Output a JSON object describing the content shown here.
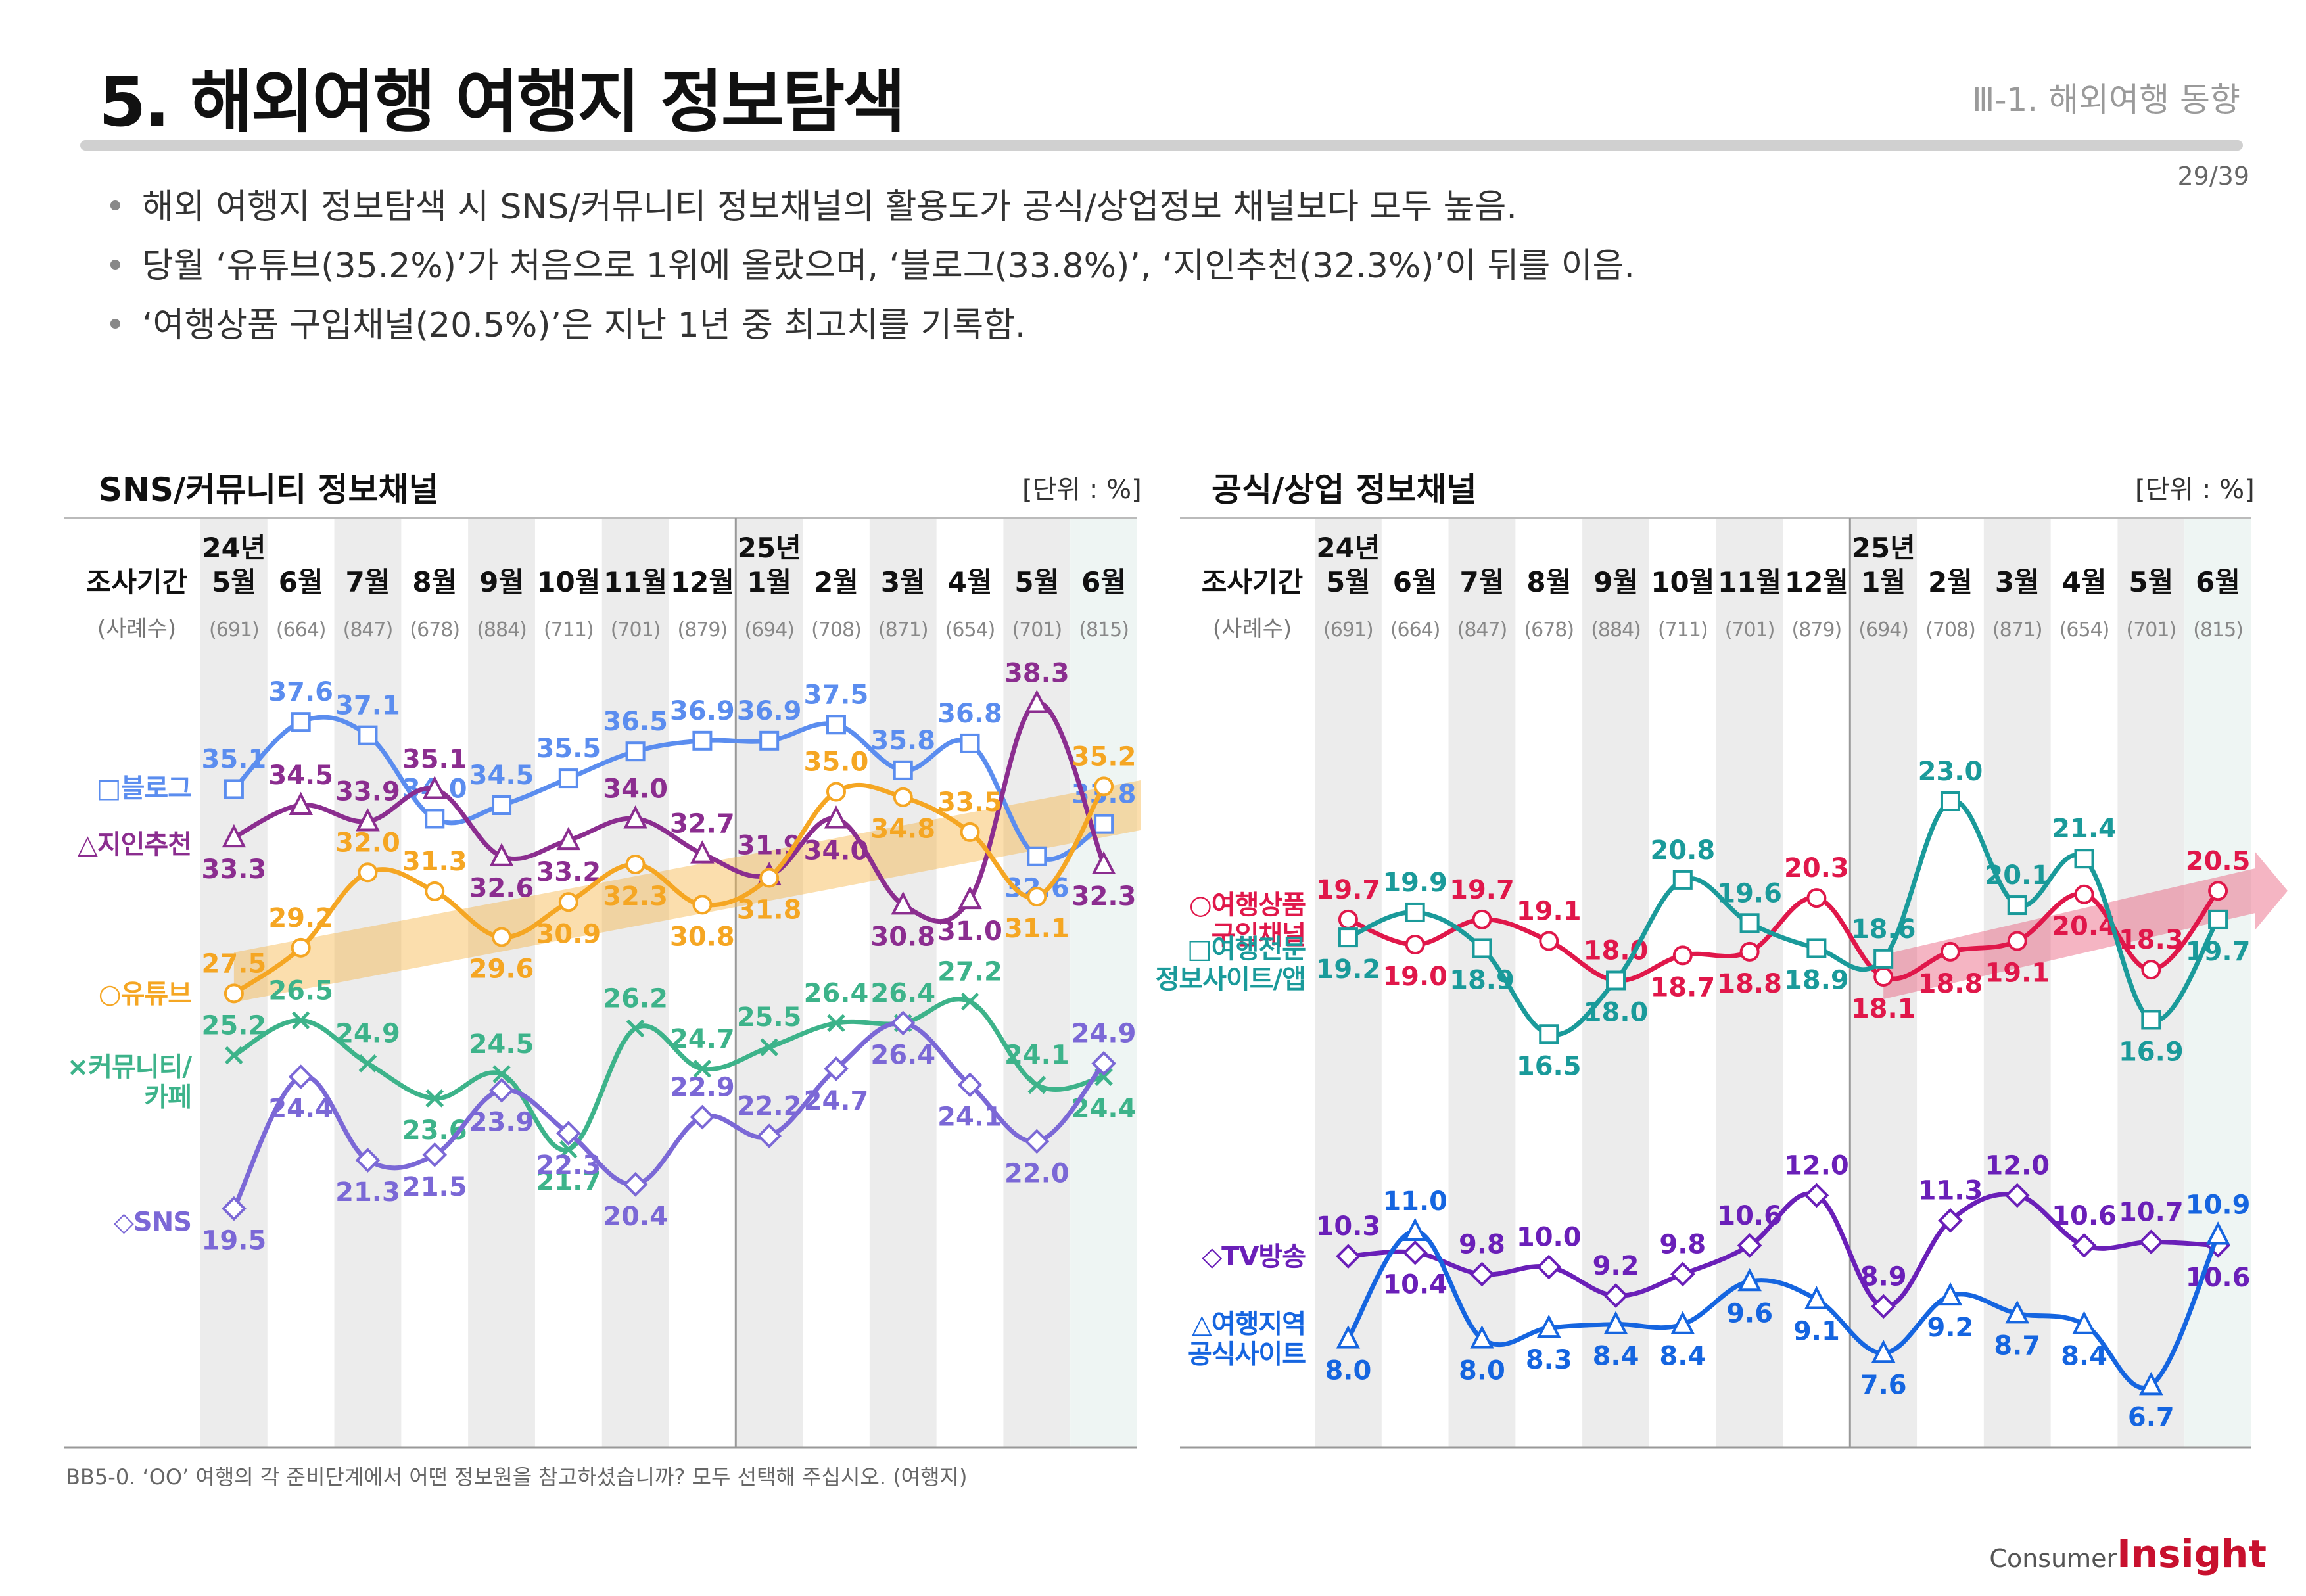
{
  "header": {
    "title": "5. 해외여행 여행지 정보탐색",
    "section": "Ⅲ-1. 해외여행 동향",
    "page": "29/39"
  },
  "bullets": [
    "해외 여행지 정보탐색 시 SNS/커뮤니티 정보채널의 활용도가 공식/상업정보 채널보다 모두 높음.",
    "당월 ‘유튜브(35.2%)’가 처음으로 1위에 올랐으며, ‘블로그(33.8%)’, ‘지인추천(32.3%)’이 뒤를 이음.",
    "‘여행상품 구입채널(20.5%)’은 지난 1년 중 최고치를 기록함."
  ],
  "footnote": "BB5-0. ‘OO’ 여행의 각 준비단계에서 어떤 정보원을 참고하셨습니까? 모두 선택해 주십시오. (여행지)",
  "logo": {
    "consumer": "Consumer",
    "insight": "Insight"
  },
  "chart_data": [
    {
      "type": "line",
      "title": "SNS/커뮤니티 정보채널",
      "unit": "[단위 : %]",
      "row_label": "조사기간",
      "n_label": "(사례수)",
      "year_labels": [
        "24년",
        "25년"
      ],
      "categories": [
        "5월",
        "6월",
        "7월",
        "8월",
        "9월",
        "10월",
        "11월",
        "12월",
        "1월",
        "2월",
        "3월",
        "4월",
        "5월",
        "6월"
      ],
      "sample_sizes": [
        "(691)",
        "(664)",
        "(847)",
        "(678)",
        "(884)",
        "(711)",
        "(701)",
        "(879)",
        "(694)",
        "(708)",
        "(871)",
        "(654)",
        "(701)",
        "(815)"
      ],
      "ylim": [
        18,
        40
      ],
      "series": [
        {
          "name": "□블로그",
          "color": "#5b8def",
          "marker": "square",
          "values": [
            35.1,
            37.6,
            37.1,
            34.0,
            34.5,
            35.5,
            36.5,
            36.9,
            36.9,
            37.5,
            35.8,
            36.8,
            32.6,
            33.8
          ]
        },
        {
          "name": "△지인추천",
          "color": "#8b2d8f",
          "marker": "triangle",
          "values": [
            33.3,
            34.5,
            33.9,
            35.1,
            32.6,
            33.2,
            34.0,
            32.7,
            31.9,
            34.0,
            30.8,
            31.0,
            38.3,
            32.3
          ]
        },
        {
          "name": "○유튜브",
          "color": "#f5a623",
          "marker": "circle",
          "values": [
            27.5,
            29.2,
            32.0,
            31.3,
            29.6,
            30.9,
            32.3,
            30.8,
            31.8,
            35.0,
            34.8,
            33.5,
            31.1,
            35.2
          ]
        },
        {
          "name": "×커뮤니티/ 카페",
          "color": "#3db38a",
          "marker": "x",
          "values": [
            25.2,
            26.5,
            24.9,
            23.6,
            24.5,
            21.7,
            26.2,
            24.7,
            25.5,
            26.4,
            26.4,
            27.2,
            24.1,
            24.4
          ]
        },
        {
          "name": "◇SNS",
          "color": "#7b68d6",
          "marker": "diamond",
          "values": [
            19.5,
            24.4,
            21.3,
            21.5,
            23.9,
            22.3,
            20.4,
            22.9,
            22.2,
            24.7,
            26.4,
            24.1,
            22.0,
            24.9
          ]
        }
      ]
    },
    {
      "type": "line",
      "title": "공식/상업 정보채널",
      "unit": "[단위 : %]",
      "row_label": "조사기간",
      "n_label": "(사례수)",
      "year_labels": [
        "24년",
        "25년"
      ],
      "categories": [
        "5월",
        "6월",
        "7월",
        "8월",
        "9월",
        "10월",
        "11월",
        "12월",
        "1월",
        "2월",
        "3월",
        "4월",
        "5월",
        "6월"
      ],
      "sample_sizes": [
        "(691)",
        "(664)",
        "(847)",
        "(678)",
        "(884)",
        "(711)",
        "(701)",
        "(879)",
        "(694)",
        "(708)",
        "(871)",
        "(654)",
        "(701)",
        "(815)"
      ],
      "ylim": [
        5,
        25
      ],
      "series": [
        {
          "name": "○여행상품 구입채널",
          "color": "#e0174a",
          "marker": "circle",
          "values": [
            19.7,
            19.0,
            19.7,
            19.1,
            18.0,
            18.7,
            18.8,
            20.3,
            18.1,
            18.8,
            19.1,
            20.4,
            18.3,
            20.5
          ]
        },
        {
          "name": "□여행전문 정보사이트/앱",
          "color": "#1a9a9a",
          "marker": "square",
          "values": [
            19.2,
            19.9,
            18.9,
            16.5,
            18.0,
            20.8,
            19.6,
            18.9,
            18.6,
            23.0,
            20.1,
            21.4,
            16.9,
            19.7
          ]
        },
        {
          "name": "◇TV방송",
          "color": "#6a1fb8",
          "marker": "diamond",
          "values": [
            10.3,
            10.4,
            9.8,
            10.0,
            9.2,
            9.8,
            10.6,
            12.0,
            8.9,
            11.3,
            12.0,
            10.6,
            10.7,
            10.6
          ]
        },
        {
          "name": "△여행지역 공식사이트",
          "color": "#1565e0",
          "marker": "triangle",
          "values": [
            8.0,
            11.0,
            8.0,
            8.3,
            8.4,
            8.4,
            9.6,
            9.1,
            7.6,
            9.2,
            8.7,
            8.4,
            6.7,
            10.9
          ]
        }
      ]
    }
  ]
}
